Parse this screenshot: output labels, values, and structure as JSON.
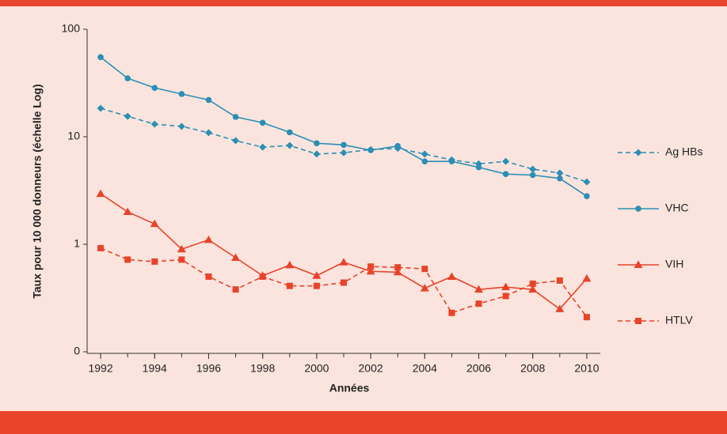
{
  "chart_data": {
    "type": "line",
    "x_label": "Années",
    "y_label": "Taux pour 10 000 donneurs (échelle Log)",
    "x": [
      1992,
      1993,
      1994,
      1995,
      1996,
      1997,
      1998,
      1999,
      2000,
      2001,
      2002,
      2003,
      2004,
      2005,
      2006,
      2007,
      2008,
      2009,
      2010
    ],
    "xlim": [
      1991.5,
      2010.5
    ],
    "xticks": [
      1992,
      1994,
      1996,
      1998,
      2000,
      2002,
      2004,
      2006,
      2008,
      2010
    ],
    "ylim": [
      0.1,
      100
    ],
    "yticks": [
      {
        "value": 0.1,
        "label": "0"
      },
      1,
      10,
      100
    ],
    "log_y": true,
    "legend": "right",
    "series": [
      {
        "name": "Ag HBs",
        "color": "#2b8fb5",
        "line_style": "dashed",
        "marker": "diamond",
        "values": [
          18.4,
          15.5,
          13.1,
          12.5,
          10.9,
          9.2,
          8.0,
          8.3,
          6.9,
          7.1,
          7.6,
          7.8,
          6.9,
          6.1,
          5.6,
          5.9,
          5.0,
          4.6,
          3.8
        ]
      },
      {
        "name": "VHC",
        "color": "#2b8fb5",
        "line_style": "solid",
        "marker": "circle",
        "values": [
          55,
          35,
          28.5,
          25,
          22,
          15.3,
          13.5,
          11,
          8.7,
          8.4,
          7.5,
          8.2,
          5.9,
          5.9,
          5.2,
          4.5,
          4.4,
          4.1,
          2.8
        ]
      },
      {
        "name": "VIH",
        "color": "#e8432b",
        "line_style": "solid",
        "marker": "triangle",
        "values": [
          2.95,
          2.0,
          1.55,
          0.9,
          1.1,
          0.75,
          0.51,
          0.64,
          0.51,
          0.68,
          0.56,
          0.55,
          0.39,
          0.5,
          0.38,
          0.4,
          0.38,
          0.25,
          0.48
        ]
      },
      {
        "name": "HTLV",
        "color": "#e8432b",
        "line_style": "dashed",
        "marker": "square",
        "values": [
          0.92,
          0.72,
          0.69,
          0.72,
          0.5,
          0.38,
          0.5,
          0.41,
          0.41,
          0.44,
          0.62,
          0.61,
          0.59,
          0.23,
          0.28,
          0.33,
          0.43,
          0.46,
          0.21
        ]
      }
    ]
  }
}
